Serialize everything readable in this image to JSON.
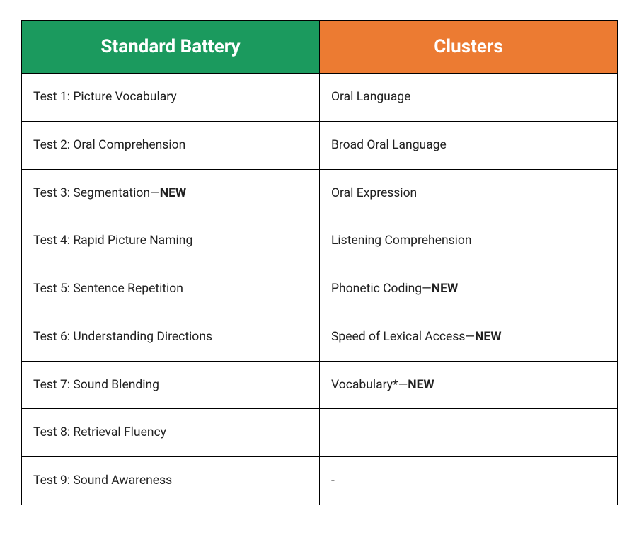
{
  "table": {
    "columns": [
      {
        "label": "Standard Battery",
        "bg_color": "#1b9a5e"
      },
      {
        "label": "Clusters",
        "bg_color": "#ec7b32"
      }
    ],
    "rows": [
      {
        "left": {
          "text": "Test 1: Picture Vocabulary",
          "has_new": false
        },
        "right": {
          "text": "Oral Language",
          "has_new": false
        }
      },
      {
        "left": {
          "text": "Test 2: Oral Comprehension",
          "has_new": false
        },
        "right": {
          "text": "Broad Oral Language",
          "has_new": false
        }
      },
      {
        "left": {
          "text": "Test 3: Segmentation",
          "has_new": true
        },
        "right": {
          "text": "Oral Expression",
          "has_new": false
        }
      },
      {
        "left": {
          "text": "Test 4: Rapid Picture Naming",
          "has_new": false
        },
        "right": {
          "text": "Listening Comprehension",
          "has_new": false
        }
      },
      {
        "left": {
          "text": "Test 5: Sentence Repetition",
          "has_new": false
        },
        "right": {
          "text": "Phonetic Coding",
          "has_new": true
        }
      },
      {
        "left": {
          "text": "Test 6: Understanding Directions",
          "has_new": false
        },
        "right": {
          "text": "Speed of Lexical Access",
          "has_new": true
        }
      },
      {
        "left": {
          "text": "Test 7: Sound Blending",
          "has_new": false
        },
        "right": {
          "text": "Vocabulary*",
          "has_new": true
        }
      },
      {
        "left": {
          "text": "Test 8: Retrieval Fluency",
          "has_new": false
        },
        "right": {
          "text": "",
          "has_new": false
        }
      },
      {
        "left": {
          "text": "Test 9: Sound Awareness",
          "has_new": false
        },
        "right": {
          "text": "-",
          "has_new": false
        }
      }
    ],
    "new_label": "NEW",
    "separator": "—",
    "header_text_color": "#ffffff",
    "header_font_size": 26,
    "cell_font_size": 17.5,
    "cell_text_color": "#212121",
    "border_color": "#000000",
    "column_widths": [
      "50%",
      "50%"
    ]
  }
}
